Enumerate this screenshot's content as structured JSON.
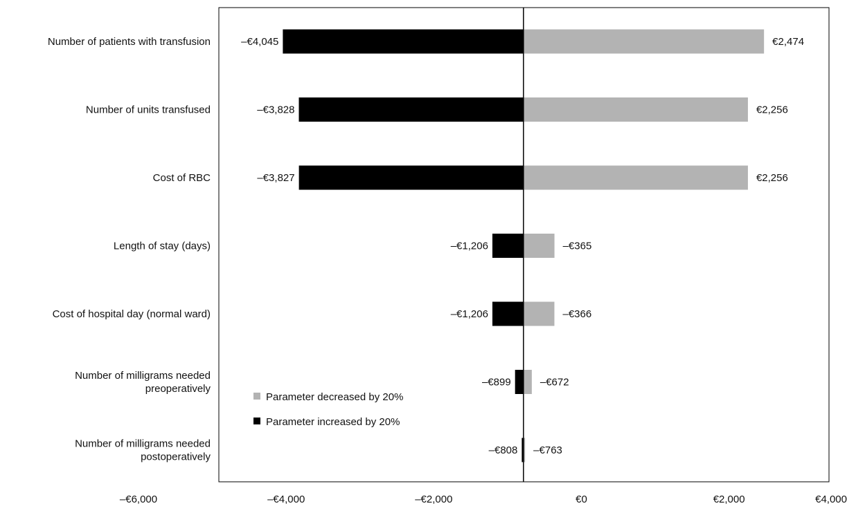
{
  "colors": {
    "decreased": "#b3b3b3",
    "increased": "#000000",
    "frame": "#000000"
  },
  "chart_data": {
    "type": "bar",
    "orientation": "horizontal",
    "title": "",
    "xlabel": "",
    "ylabel": "",
    "xlim": [
      -6000,
      4000
    ],
    "baseline": -785,
    "x_ticks": [
      -6000,
      -4000,
      -2000,
      0,
      2000,
      4000
    ],
    "x_tick_labels": [
      "–€6,000",
      "–€4,000",
      "–€2,000",
      "€0",
      "€2,000",
      "€4,000"
    ],
    "grid": false,
    "legend_position": "bottom-left",
    "categories": [
      [
        "Number of patients with transfusion"
      ],
      [
        "Number of units transfused"
      ],
      [
        "Cost of RBC"
      ],
      [
        "Length of stay (days)"
      ],
      [
        "Cost of hospital day (normal ward)"
      ],
      [
        "Number of milligrams needed",
        "preoperatively"
      ],
      [
        "Number of milligrams needed",
        "postoperatively"
      ]
    ],
    "series": [
      {
        "name": "Parameter decreased by 20%",
        "values": [
          2474,
          2256,
          2256,
          -365,
          -366,
          -672,
          -763
        ],
        "labels": [
          "€2,474",
          "€2,256",
          "€2,256",
          "–€365",
          "–€366",
          "–€672",
          "–€763"
        ]
      },
      {
        "name": "Parameter increased by 20%",
        "values": [
          -4045,
          -3828,
          -3827,
          -1206,
          -1206,
          -899,
          -808
        ],
        "labels": [
          "–€4,045",
          "–€3,828",
          "–€3,827",
          "–€1,206",
          "–€1,206",
          "–€899",
          "–€808"
        ]
      }
    ]
  }
}
